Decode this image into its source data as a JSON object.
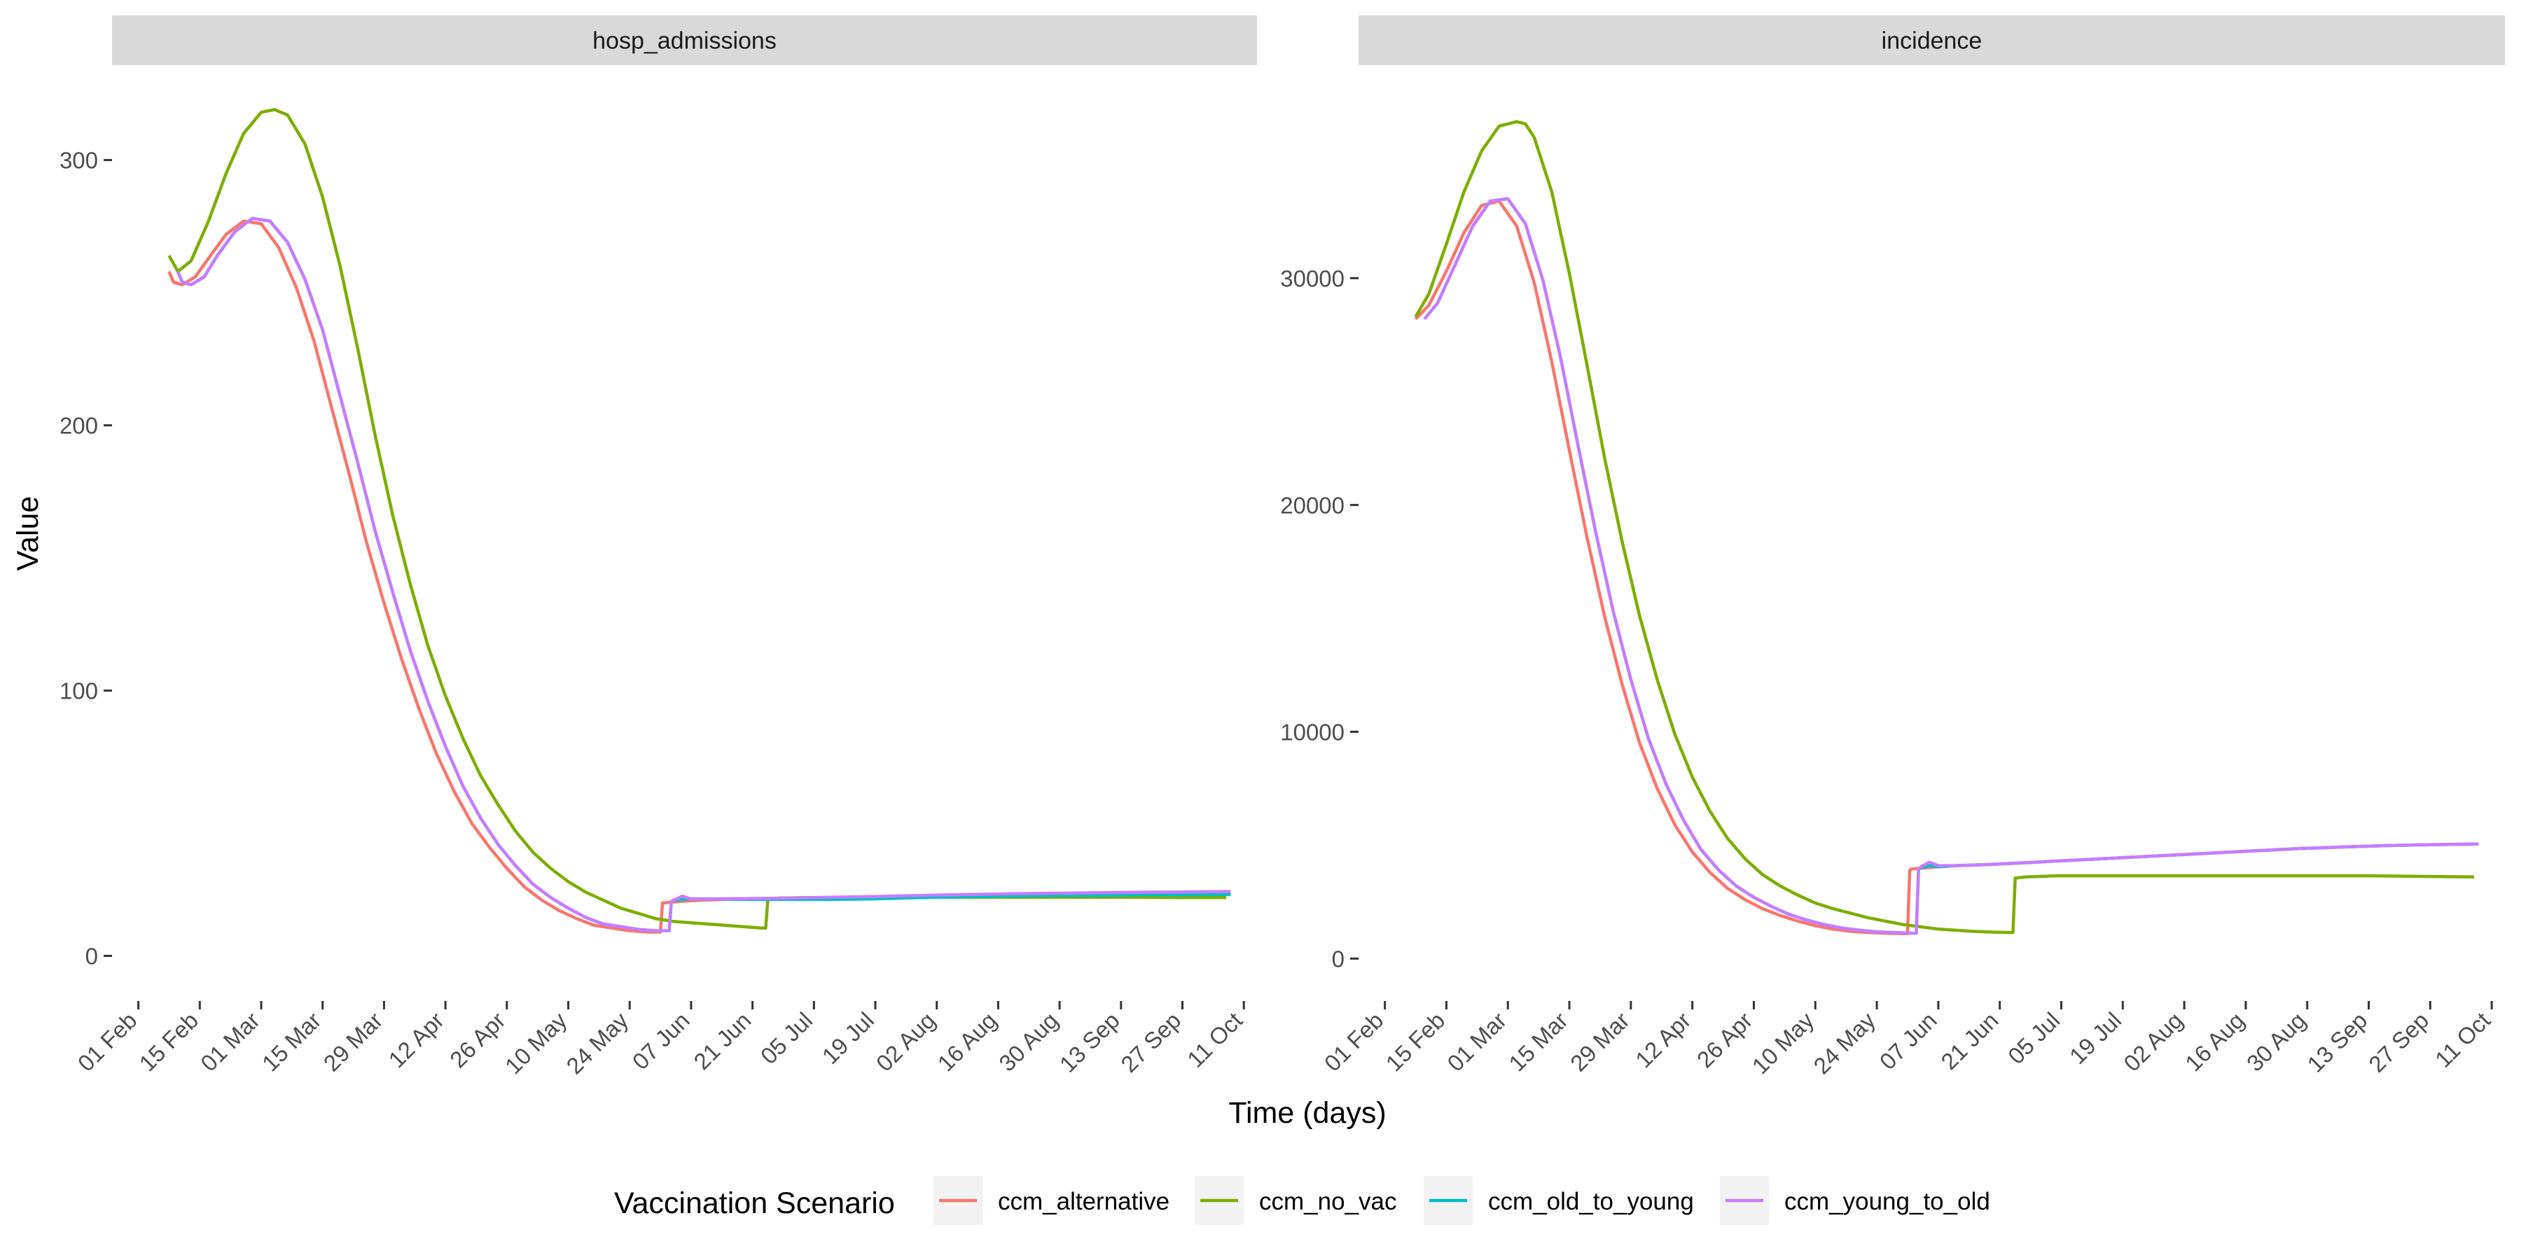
{
  "x_axis_title": "Time (days)",
  "y_axis_title": "Value",
  "legend_title": "Vaccination Scenario",
  "x_ticks": [
    "01 Feb",
    "15 Feb",
    "01 Mar",
    "15 Mar",
    "29 Mar",
    "12 Apr",
    "26 Apr",
    "10 May",
    "24 May",
    "07 Jun",
    "21 Jun",
    "05 Jul",
    "19 Jul",
    "02 Aug",
    "16 Aug",
    "30 Aug",
    "13 Sep",
    "27 Sep",
    "11 Oct"
  ],
  "colors": {
    "ccm_alternative": "#F8766D",
    "ccm_no_vac": "#7CAE00",
    "ccm_old_to_young": "#00BFC4",
    "ccm_young_to_old": "#C77CFF"
  },
  "chart_data": [
    {
      "type": "line",
      "facet": "hosp_admissions",
      "xlabel": "Time (days)",
      "ylabel": "Value",
      "x_unit": "day of year 2021 (1 Jan = day 1)",
      "xlim": [
        26,
        287
      ],
      "ylim": [
        -17,
        335
      ],
      "y_ticks": [
        0,
        100,
        200,
        300
      ],
      "grid": false,
      "legend_position": "bottom",
      "series": [
        {
          "name": "ccm_alternative",
          "x": [
            39,
            40,
            42,
            45,
            48,
            52,
            56,
            60,
            64,
            68,
            72,
            76,
            80,
            84,
            88,
            92,
            96,
            100,
            104,
            108,
            112,
            116,
            120,
            124,
            128,
            132,
            136,
            140,
            144,
            148,
            151,
            151.5,
            152,
            155,
            160,
            170,
            180,
            190,
            200,
            210,
            220,
            230,
            240,
            250,
            260,
            270,
            280
          ],
          "y": [
            258,
            254,
            253,
            256,
            263,
            272,
            277,
            276,
            267,
            252,
            232,
            207,
            182,
            156,
            133,
            112,
            93,
            76,
            62,
            50,
            41,
            33,
            26,
            21,
            17,
            14,
            11.5,
            10.5,
            9.5,
            9,
            9,
            20,
            20,
            20.5,
            21,
            21.5,
            21.8,
            22,
            22.3,
            22.6,
            22.9,
            23.1,
            23.3,
            23.5,
            23.6,
            23.7,
            23.8
          ]
        },
        {
          "name": "ccm_no_vac",
          "x": [
            39,
            41,
            44,
            48,
            52,
            56,
            60,
            63,
            66,
            70,
            74,
            78,
            82,
            86,
            90,
            94,
            98,
            102,
            106,
            110,
            114,
            118,
            122,
            126,
            130,
            134,
            138,
            142,
            146,
            150,
            154,
            158,
            162,
            166,
            170,
            174,
            175,
            175.5,
            178,
            185,
            195,
            210,
            225,
            240,
            255,
            270,
            280
          ],
          "y": [
            264,
            258,
            262,
            277,
            295,
            310,
            318,
            319,
            317,
            306,
            286,
            260,
            229,
            196,
            166,
            140,
            117,
            98,
            82,
            68,
            57,
            47,
            39,
            33,
            28,
            24,
            21,
            18,
            16,
            14,
            13,
            12.5,
            12,
            11.5,
            11,
            10.5,
            10.5,
            21.5,
            21.8,
            22,
            22,
            22.1,
            22.1,
            22.1,
            22.1,
            22,
            22
          ]
        },
        {
          "name": "ccm_old_to_young",
          "x": [
            41,
            42,
            44,
            47,
            50,
            54,
            58,
            62,
            66,
            70,
            74,
            78,
            82,
            86,
            90,
            94,
            98,
            102,
            106,
            110,
            114,
            118,
            122,
            126,
            130,
            134,
            138,
            142,
            146,
            150,
            153,
            153.5,
            154,
            157,
            162,
            170,
            180,
            190,
            200,
            210,
            220,
            230,
            240,
            250,
            260,
            270,
            281
          ],
          "y": [
            258,
            254,
            253,
            256,
            264,
            273,
            278,
            277,
            269,
            255,
            236,
            211,
            186,
            160,
            137,
            115,
            96,
            79,
            64,
            52,
            42,
            34,
            27,
            22,
            18,
            14.5,
            12,
            11,
            10,
            9.5,
            9.5,
            20.5,
            21,
            21.5,
            21.5,
            21.3,
            21.3,
            21.3,
            21.5,
            22,
            22.3,
            22.5,
            22.7,
            22.8,
            23,
            23,
            23.2
          ]
        },
        {
          "name": "ccm_young_to_old",
          "x": [
            41,
            42,
            44,
            47,
            50,
            54,
            58,
            62,
            66,
            70,
            74,
            78,
            82,
            86,
            90,
            94,
            98,
            102,
            106,
            110,
            114,
            118,
            122,
            126,
            130,
            134,
            138,
            142,
            146,
            150,
            153,
            153.5,
            154,
            156,
            158,
            162,
            170,
            180,
            190,
            200,
            210,
            220,
            230,
            240,
            250,
            260,
            270,
            281
          ],
          "y": [
            258,
            254,
            253,
            256,
            264,
            273,
            278,
            277,
            269,
            255,
            236,
            211,
            186,
            160,
            137,
            115,
            96,
            79,
            64,
            52,
            42,
            34,
            27,
            22,
            18,
            14.5,
            12,
            11,
            10,
            9.5,
            9.5,
            20.5,
            21,
            22.5,
            21.5,
            21.5,
            21.6,
            21.8,
            22.1,
            22.4,
            22.8,
            23.1,
            23.4,
            23.6,
            23.8,
            24,
            24.1,
            24.3
          ]
        }
      ]
    },
    {
      "type": "line",
      "facet": "incidence",
      "xlabel": "Time (days)",
      "ylabel": "Value",
      "x_unit": "day of year 2021 (1 Jan = day 1)",
      "xlim": [
        26,
        287
      ],
      "ylim": [
        -1870,
        39300
      ],
      "y_ticks": [
        0,
        10000,
        20000,
        30000
      ],
      "grid": false,
      "legend_position": "bottom",
      "series": [
        {
          "name": "ccm_alternative",
          "x": [
            39,
            42,
            46,
            50,
            54,
            58,
            62,
            66,
            70,
            74,
            78,
            82,
            86,
            90,
            94,
            98,
            102,
            106,
            110,
            114,
            118,
            122,
            126,
            130,
            134,
            138,
            142,
            146,
            150,
            151,
            151.5,
            152,
            155,
            158,
            162,
            170,
            180,
            190,
            200,
            210,
            220,
            230,
            240,
            250,
            260,
            270,
            280
          ],
          "y": [
            28200,
            28800,
            30300,
            32000,
            33200,
            33400,
            32300,
            29800,
            26300,
            22400,
            18600,
            15100,
            12100,
            9500,
            7500,
            5900,
            4700,
            3800,
            3100,
            2600,
            2200,
            1900,
            1650,
            1450,
            1300,
            1200,
            1150,
            1120,
            1100,
            1100,
            3900,
            3950,
            4000,
            4050,
            4100,
            4150,
            4250,
            4350,
            4450,
            4550,
            4650,
            4750,
            4850,
            4920,
            4980,
            5020,
            5050
          ]
        },
        {
          "name": "ccm_no_vac",
          "x": [
            39,
            42,
            46,
            50,
            54,
            58,
            62,
            64,
            66,
            70,
            74,
            78,
            82,
            86,
            90,
            94,
            98,
            102,
            106,
            110,
            114,
            118,
            122,
            126,
            130,
            134,
            138,
            142,
            146,
            150,
            154,
            158,
            162,
            166,
            170,
            174,
            175,
            175.5,
            178,
            185,
            195,
            210,
            225,
            240,
            255,
            270,
            280
          ],
          "y": [
            28300,
            29300,
            31500,
            33800,
            35600,
            36700,
            36900,
            36800,
            36200,
            33800,
            30200,
            26200,
            22100,
            18400,
            15100,
            12300,
            9900,
            8000,
            6500,
            5300,
            4400,
            3700,
            3200,
            2800,
            2450,
            2200,
            2000,
            1800,
            1650,
            1500,
            1400,
            1300,
            1250,
            1200,
            1170,
            1150,
            1150,
            3550,
            3600,
            3650,
            3650,
            3650,
            3650,
            3650,
            3650,
            3620,
            3600
          ]
        },
        {
          "name": "ccm_old_to_young",
          "x": [
            41,
            44,
            48,
            52,
            56,
            60,
            64,
            68,
            72,
            76,
            80,
            84,
            88,
            92,
            96,
            100,
            104,
            108,
            112,
            116,
            120,
            124,
            128,
            132,
            136,
            140,
            144,
            148,
            152,
            153,
            153.5,
            154,
            156,
            158,
            162,
            170,
            180,
            190,
            200,
            210,
            220,
            230,
            240,
            250,
            260,
            270,
            281
          ],
          "y": [
            28200,
            28900,
            30600,
            32300,
            33400,
            33500,
            32400,
            29900,
            26500,
            22600,
            18800,
            15300,
            12300,
            9700,
            7700,
            6100,
            4800,
            3900,
            3200,
            2700,
            2300,
            1950,
            1700,
            1500,
            1350,
            1250,
            1180,
            1150,
            1120,
            1120,
            3950,
            4000,
            4100,
            4050,
            4100,
            4150,
            4250,
            4350,
            4450,
            4550,
            4650,
            4750,
            4850,
            4920,
            4980,
            5020,
            5050
          ]
        },
        {
          "name": "ccm_young_to_old",
          "x": [
            41,
            44,
            48,
            52,
            56,
            60,
            64,
            68,
            72,
            76,
            80,
            84,
            88,
            92,
            96,
            100,
            104,
            108,
            112,
            116,
            120,
            124,
            128,
            132,
            136,
            140,
            144,
            148,
            152,
            153,
            153.5,
            154,
            156,
            158,
            162,
            170,
            180,
            190,
            200,
            210,
            220,
            230,
            240,
            250,
            260,
            270,
            281
          ],
          "y": [
            28200,
            28900,
            30600,
            32300,
            33400,
            33500,
            32400,
            29900,
            26500,
            22600,
            18800,
            15300,
            12300,
            9700,
            7700,
            6100,
            4800,
            3900,
            3200,
            2700,
            2300,
            1950,
            1700,
            1500,
            1350,
            1250,
            1180,
            1150,
            1120,
            1120,
            3950,
            4050,
            4250,
            4100,
            4100,
            4150,
            4250,
            4350,
            4450,
            4550,
            4650,
            4750,
            4850,
            4920,
            4980,
            5020,
            5050
          ]
        }
      ]
    }
  ]
}
